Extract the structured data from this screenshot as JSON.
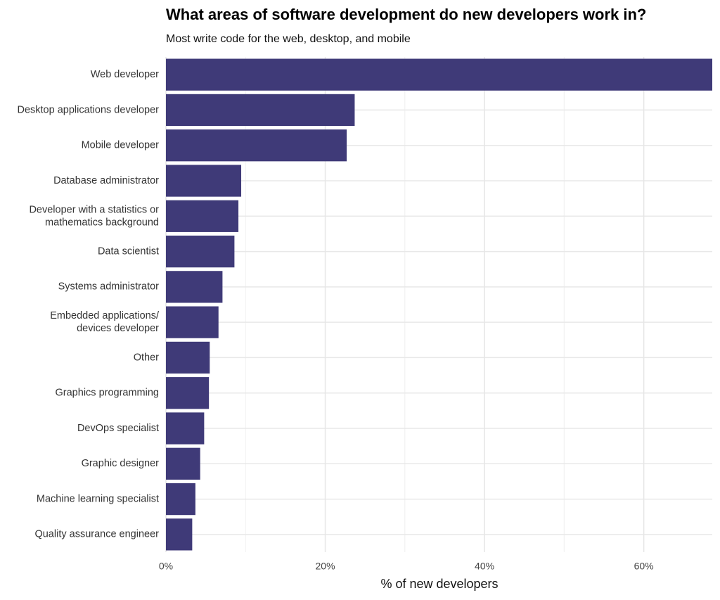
{
  "chart_data": {
    "type": "hbar",
    "title": "What areas of software development do new developers work in?",
    "subtitle": "Most write code for the web, desktop, and mobile",
    "xlabel": "% of new developers",
    "categories": [
      "Web developer",
      "Desktop applications developer",
      "Mobile developer",
      "Database administrator",
      "Developer with a statistics or\nmathematics background",
      "Data scientist",
      "Systems administrator",
      "Embedded applications/\ndevices developer",
      "Other",
      "Graphics programming",
      "DevOps specialist",
      "Graphic designer",
      "Machine learning specialist",
      "Quality assurance engineer"
    ],
    "values": [
      68.6,
      23.7,
      22.7,
      9.45,
      9.1,
      8.6,
      7.1,
      6.6,
      5.5,
      5.4,
      4.8,
      4.3,
      3.7,
      3.3
    ],
    "color": "#3f3a78",
    "xlim": [
      0,
      68.6
    ],
    "xticks": [
      {
        "value": 0,
        "label": "0%"
      },
      {
        "value": 20,
        "label": "20%"
      },
      {
        "value": 40,
        "label": "40%"
      },
      {
        "value": 60,
        "label": "60%"
      }
    ],
    "xminor": [
      10,
      30,
      50
    ],
    "grid": true
  }
}
